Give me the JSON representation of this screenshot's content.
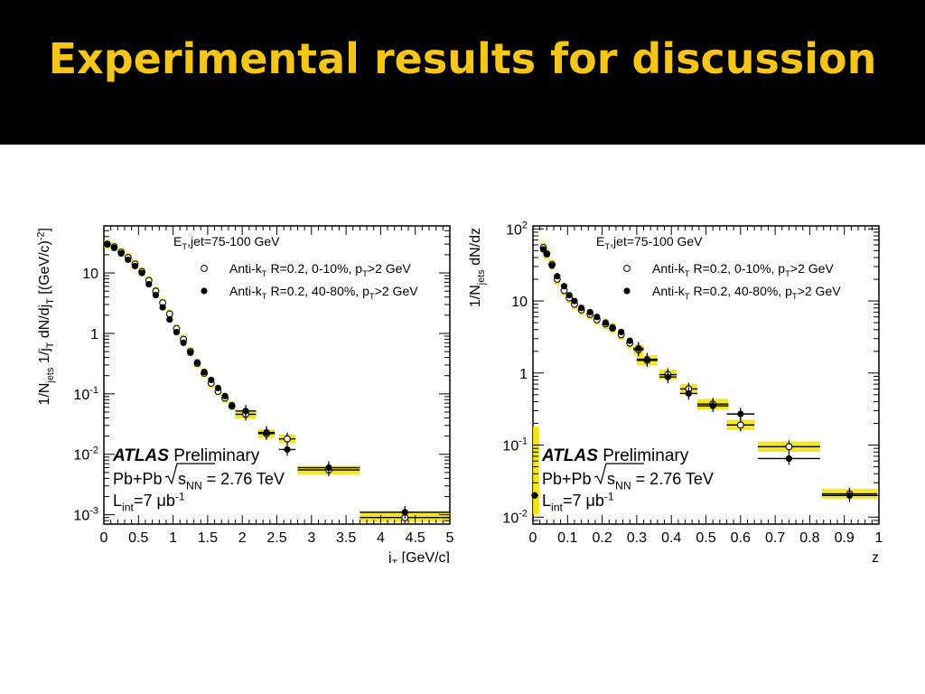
{
  "slide": {
    "title": "Experimental results for discussion"
  },
  "colors": {
    "title_band": "#000000",
    "title_text": "#f5c518",
    "sys_band": "#f2e200"
  },
  "chart_data": [
    {
      "type": "scatter",
      "log_y": true,
      "ylim": [
        0.0007,
        60
      ],
      "xlim": [
        0,
        5
      ],
      "xlabel": "j_T [GeV/c]",
      "ylabel": "1/N_jets 1/j_T dN/dj_T [(GeV/c)^-2]",
      "x_ticks": [
        "0",
        "0.5",
        "1",
        "1.5",
        "2",
        "2.5",
        "3",
        "3.5",
        "4",
        "4.5",
        "5"
      ],
      "y_ticks": [
        "10^-3",
        "10^-2",
        "10^-1",
        "1",
        "10"
      ],
      "legend": {
        "header": "E_T,jet=75-100 GeV",
        "open": "Anti-k_T R=0.2, 0-10%, p_T>2 GeV",
        "closed": "Anti-k_T R=0.2, 40-80%, p_T>2 GeV"
      },
      "atlas_label": "ATLAS",
      "atlas_sub": "Preliminary",
      "system": "Pb+Pb",
      "energy": "s_NN = 2.76 TeV",
      "lumi": "L_int=7 μb^-1",
      "series": [
        {
          "name": "Anti-k_T R=0.2, 0-10%, p_T>2 GeV",
          "marker": "open",
          "points": [
            [
              0.05,
              30,
              0
            ],
            [
              0.15,
              27,
              0
            ],
            [
              0.25,
              22,
              0
            ],
            [
              0.35,
              18,
              0
            ],
            [
              0.45,
              14,
              0
            ],
            [
              0.55,
              10.5,
              0
            ],
            [
              0.65,
              7.5,
              0
            ],
            [
              0.75,
              5.0,
              0
            ],
            [
              0.85,
              3.2,
              0
            ],
            [
              0.95,
              2.1,
              0
            ],
            [
              1.05,
              1.2,
              0
            ],
            [
              1.15,
              0.8,
              0
            ],
            [
              1.25,
              0.5,
              0
            ],
            [
              1.35,
              0.32,
              0
            ],
            [
              1.45,
              0.22,
              0
            ],
            [
              1.55,
              0.15,
              0
            ],
            [
              1.65,
              0.11,
              0
            ],
            [
              1.75,
              0.085,
              0
            ],
            [
              1.85,
              0.063,
              0
            ],
            [
              2.05,
              0.046,
              0.15
            ],
            [
              2.35,
              0.022,
              0.12
            ],
            [
              2.65,
              0.018,
              0.12
            ],
            [
              3.25,
              0.0055,
              0.45
            ],
            [
              4.35,
              0.0009,
              0.65
            ]
          ]
        },
        {
          "name": "Anti-k_T R=0.2, 40-80%, p_T>2 GeV",
          "marker": "closed",
          "points": [
            [
              0.05,
              30,
              0
            ],
            [
              0.15,
              26,
              0
            ],
            [
              0.25,
              21,
              0
            ],
            [
              0.35,
              16.5,
              0
            ],
            [
              0.45,
              13,
              0
            ],
            [
              0.55,
              10,
              0
            ],
            [
              0.65,
              6.5,
              0
            ],
            [
              0.75,
              4.3,
              0
            ],
            [
              0.85,
              2.7,
              0
            ],
            [
              0.95,
              1.7,
              0
            ],
            [
              1.05,
              1.05,
              0
            ],
            [
              1.15,
              0.7,
              0
            ],
            [
              1.25,
              0.48,
              0
            ],
            [
              1.35,
              0.33,
              0
            ],
            [
              1.45,
              0.23,
              0
            ],
            [
              1.55,
              0.17,
              0
            ],
            [
              1.65,
              0.125,
              0
            ],
            [
              1.75,
              0.092,
              0
            ],
            [
              1.85,
              0.065,
              0
            ],
            [
              2.05,
              0.052,
              0.15
            ],
            [
              2.35,
              0.023,
              0.12
            ],
            [
              2.65,
              0.012,
              0.12
            ],
            [
              3.25,
              0.006,
              0.45
            ],
            [
              4.35,
              0.0011,
              0.65
            ]
          ]
        }
      ]
    },
    {
      "type": "scatter",
      "log_y": true,
      "ylim": [
        0.008,
        110
      ],
      "xlim": [
        0,
        1
      ],
      "xlabel": "z",
      "ylabel": "1/N_jets dN/dz",
      "x_ticks": [
        "0",
        "0.1",
        "0.2",
        "0.3",
        "0.4",
        "0.5",
        "0.6",
        "0.7",
        "0.8",
        "0.9",
        "1"
      ],
      "y_ticks": [
        "10^-2",
        "10^-1",
        "1",
        "10",
        "10^2"
      ],
      "legend": {
        "header": "E_T,jet=75-100 GeV",
        "open": "Anti-k_T R=0.2, 0-10%, p_T>2 GeV",
        "closed": "Anti-k_T R=0.2, 40-80%, p_T>2 GeV"
      },
      "atlas_label": "ATLAS",
      "atlas_sub": "Preliminary",
      "system": "Pb+Pb",
      "energy": "s_NN = 2.76 TeV",
      "lumi": "L_int=7 μb^-1",
      "series": [
        {
          "name": "Anti-k_T R=0.2, 0-10%, p_T>2 GeV",
          "marker": "open",
          "points": [
            [
              0.03,
              55,
              0
            ],
            [
              0.04,
              45,
              0
            ],
            [
              0.055,
              32,
              0
            ],
            [
              0.07,
              20,
              0
            ],
            [
              0.09,
              14,
              0
            ],
            [
              0.105,
              11,
              0
            ],
            [
              0.12,
              9.0,
              0
            ],
            [
              0.14,
              7.5,
              0
            ],
            [
              0.165,
              6.5,
              0
            ],
            [
              0.185,
              5.5,
              0
            ],
            [
              0.21,
              4.8,
              0
            ],
            [
              0.23,
              4.2,
              0
            ],
            [
              0.255,
              3.4,
              0
            ],
            [
              0.28,
              2.6,
              0
            ],
            [
              0.305,
              2.1,
              0.015
            ],
            [
              0.33,
              1.5,
              0.03
            ],
            [
              0.39,
              0.95,
              0.025
            ],
            [
              0.45,
              0.6,
              0.025
            ],
            [
              0.52,
              0.37,
              0.045
            ],
            [
              0.6,
              0.19,
              0.04
            ],
            [
              0.74,
              0.095,
              0.09
            ],
            [
              0.915,
              0.021,
              0.08
            ]
          ]
        },
        {
          "name": "Anti-k_T R=0.2, 40-80%, p_T>2 GeV",
          "marker": "closed",
          "points": [
            [
              0.005,
              0.02,
              0
            ],
            [
              0.03,
              52,
              0
            ],
            [
              0.04,
              45,
              0
            ],
            [
              0.055,
              31,
              0
            ],
            [
              0.07,
              22,
              0
            ],
            [
              0.09,
              16,
              0
            ],
            [
              0.105,
              12,
              0
            ],
            [
              0.12,
              10,
              0
            ],
            [
              0.14,
              8.0,
              0
            ],
            [
              0.165,
              7.0,
              0
            ],
            [
              0.185,
              6.0,
              0
            ],
            [
              0.21,
              5.0,
              0
            ],
            [
              0.23,
              4.3,
              0
            ],
            [
              0.255,
              3.7,
              0
            ],
            [
              0.28,
              2.8,
              0
            ],
            [
              0.305,
              2.2,
              0.015
            ],
            [
              0.33,
              1.55,
              0.03
            ],
            [
              0.39,
              0.88,
              0.025
            ],
            [
              0.45,
              0.52,
              0.025
            ],
            [
              0.52,
              0.35,
              0.045
            ],
            [
              0.6,
              0.27,
              0.04
            ],
            [
              0.74,
              0.065,
              0.09
            ],
            [
              0.915,
              0.02,
              0.08
            ]
          ]
        }
      ]
    }
  ]
}
